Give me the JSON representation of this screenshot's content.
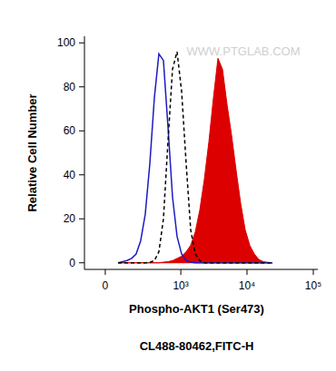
{
  "chart_data": {
    "type": "line",
    "x_label": "Phospho-AKT1 (Ser473)",
    "y_label": "Relative Cell Number",
    "subtitle": "CL488-80462,FITC-H",
    "annotation": "WWW.PTGLAB.COM",
    "log": "x",
    "xlim": [
      -115,
      117000
    ],
    "xticks": [
      0,
      {
        "value": 1000,
        "label": "10³"
      },
      {
        "value": 10000,
        "label": "10⁴"
      },
      {
        "value": 100000,
        "label": "10⁵"
      }
    ],
    "ylim": [
      -3,
      103
    ],
    "yticks": [
      0,
      20,
      40,
      60,
      80,
      100
    ],
    "x": [
      67,
      93,
      121,
      153,
      188,
      228,
      274,
      327,
      388,
      458,
      540,
      635,
      746,
      876,
      1028,
      1206,
      1413,
      1656,
      1940,
      2272,
      2660,
      3116,
      3650,
      4271,
      5000,
      5855,
      6858,
      8027,
      9400,
      11000,
      12900,
      15080,
      17670,
      20690,
      24220
    ],
    "series": [
      {
        "type": "line",
        "line_style": "solid",
        "color": "#1c1cc4",
        "values": [
          0,
          0.5,
          1,
          2,
          4,
          10,
          22,
          45,
          75,
          95,
          92,
          62,
          30,
          12,
          4,
          1,
          0.3,
          0,
          0,
          0,
          0,
          0,
          0,
          0,
          0,
          0,
          0,
          0,
          0,
          0,
          0,
          0,
          0,
          0,
          0
        ]
      },
      {
        "type": "line",
        "line_style": "dashed",
        "color": "#000000",
        "values": [
          0,
          0,
          0,
          0,
          0,
          0,
          0,
          0.2,
          1,
          5,
          20,
          55,
          88,
          96,
          78,
          45,
          15,
          4,
          1,
          0,
          0,
          0,
          0,
          0,
          0,
          0,
          0,
          0,
          0,
          0,
          0,
          0,
          0,
          0,
          0
        ]
      },
      {
        "type": "area",
        "line_style": "solid",
        "color": "#dd0000",
        "values": [
          0,
          0,
          0,
          0,
          0,
          0,
          0,
          0,
          0,
          0,
          0.3,
          0.5,
          1,
          2,
          3,
          5,
          8,
          14,
          24,
          38,
          55,
          75,
          93,
          88,
          72,
          58,
          42,
          27,
          15,
          8,
          4,
          1.5,
          0.5,
          0.2,
          0
        ]
      }
    ]
  }
}
